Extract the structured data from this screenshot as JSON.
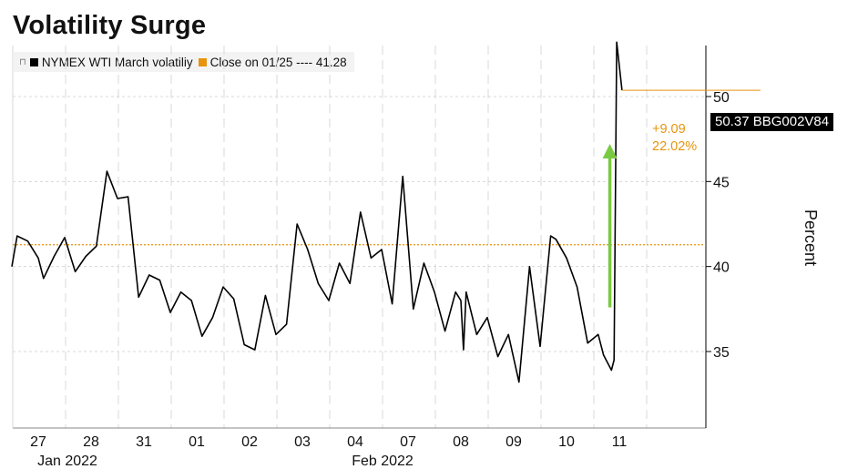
{
  "title": "Volatility Surge",
  "legend": {
    "items": [
      {
        "label": "NYMEX WTI March volatiliy",
        "color": "#000000"
      },
      {
        "label": "Close on 01/25 ---- 41.28",
        "color": "#e8930c"
      }
    ]
  },
  "last_value_label": "50.37 BBG002V84",
  "change_abs": "+9.09",
  "change_pct": "22.02%",
  "chart_data": {
    "type": "line",
    "title": "Volatility Surge",
    "xlabel": "",
    "ylabel": "Percent",
    "ylim": [
      30.5,
      53
    ],
    "yticks": [
      35,
      40,
      45,
      50
    ],
    "xtick_labels": [
      "27",
      "28",
      "31",
      "01",
      "02",
      "03",
      "04",
      "07",
      "08",
      "09",
      "10",
      "11"
    ],
    "month_labels": [
      {
        "label": "Jan 2022",
        "at": 28
      },
      {
        "label": "Feb 2022",
        "at": 7
      }
    ],
    "reference_line": {
      "label": "Close on 01/25",
      "value": 41.28,
      "color": "#e8930c",
      "style": "dotted"
    },
    "arrow": {
      "color": "#7ac943",
      "from": 37.6,
      "to": 47.0
    },
    "grid": true,
    "legend_position": "top-left",
    "series": [
      {
        "name": "NYMEX WTI March volatiliy",
        "color": "#000000",
        "x": [
          0,
          0.1,
          0.3,
          0.5,
          0.6,
          0.8,
          1.0,
          1.2,
          1.4,
          1.6,
          1.8,
          2.0,
          2.2,
          2.4,
          2.6,
          2.8,
          3.0,
          3.2,
          3.4,
          3.6,
          3.8,
          4.0,
          4.2,
          4.4,
          4.6,
          4.8,
          5.0,
          5.2,
          5.4,
          5.6,
          5.8,
          6.0,
          6.2,
          6.4,
          6.6,
          6.8,
          7.0,
          7.2,
          7.4,
          7.6,
          7.8,
          8.0,
          8.2,
          8.4,
          8.5,
          8.55,
          8.6,
          8.8,
          9.0,
          9.2,
          9.4,
          9.6,
          9.8,
          10.0,
          10.2,
          10.3,
          10.5,
          10.7,
          10.9,
          11.1,
          11.2,
          11.3,
          11.35,
          11.4,
          11.45,
          11.55
        ],
        "values": [
          40.0,
          41.8,
          41.5,
          40.5,
          39.3,
          40.6,
          41.7,
          39.7,
          40.6,
          41.2,
          45.6,
          44.0,
          44.1,
          38.2,
          39.5,
          39.2,
          37.3,
          38.5,
          38.0,
          35.9,
          37.0,
          38.8,
          38.1,
          35.4,
          35.1,
          38.3,
          36.0,
          36.6,
          42.5,
          41.0,
          39.0,
          38.0,
          40.2,
          39.0,
          43.2,
          40.5,
          41.0,
          37.8,
          45.3,
          37.5,
          40.2,
          38.5,
          36.2,
          38.5,
          38.0,
          35.1,
          38.5,
          36.0,
          37.0,
          34.7,
          36.0,
          33.2,
          40.0,
          35.3,
          41.8,
          41.6,
          40.5,
          38.8,
          35.5,
          36.0,
          34.8,
          34.2,
          33.9,
          34.5,
          53.2,
          50.37
        ]
      }
    ]
  }
}
